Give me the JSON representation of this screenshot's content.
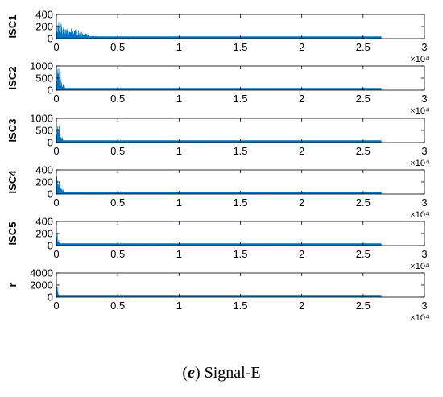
{
  "caption": {
    "letter": "e",
    "text": "Signal-E"
  },
  "chart_data": [
    {
      "type": "area",
      "ylabel": "ISC1",
      "yticks": [
        0,
        200,
        400
      ],
      "ylim": [
        0,
        400
      ],
      "xticks": [
        "0",
        "0.5",
        "1",
        "1.5",
        "2",
        "2.5",
        "3"
      ],
      "xlim": [
        0,
        3
      ],
      "x_scale_label": "×10⁴",
      "color": "#0072BD",
      "envelope": [
        [
          0,
          190
        ],
        [
          0.02,
          310
        ],
        [
          0.04,
          250
        ],
        [
          0.05,
          200
        ],
        [
          0.08,
          210
        ],
        [
          0.1,
          150
        ],
        [
          0.12,
          200
        ],
        [
          0.15,
          175
        ],
        [
          0.2,
          120
        ],
        [
          0.25,
          80
        ],
        [
          0.3,
          50
        ],
        [
          0.35,
          30
        ],
        [
          0.4,
          22
        ],
        [
          0.5,
          15
        ],
        [
          0.7,
          10
        ],
        [
          1.0,
          6
        ],
        [
          1.5,
          4
        ],
        [
          2.0,
          3
        ],
        [
          2.65,
          2
        ]
      ]
    },
    {
      "type": "area",
      "ylabel": "ISC2",
      "yticks": [
        0,
        500,
        1000
      ],
      "ylim": [
        0,
        1000
      ],
      "xticks": [
        "0",
        "0.5",
        "1",
        "1.5",
        "2",
        "2.5",
        "3"
      ],
      "xlim": [
        0,
        3
      ],
      "x_scale_label": "×10⁴",
      "color": "#0072BD",
      "envelope": [
        [
          0,
          500
        ],
        [
          0.01,
          1000
        ],
        [
          0.02,
          950
        ],
        [
          0.025,
          650
        ],
        [
          0.03,
          900
        ],
        [
          0.04,
          420
        ],
        [
          0.05,
          200
        ],
        [
          0.06,
          320
        ],
        [
          0.07,
          90
        ],
        [
          0.1,
          50
        ],
        [
          0.2,
          20
        ],
        [
          0.4,
          12
        ],
        [
          1.0,
          8
        ],
        [
          2.0,
          5
        ],
        [
          2.65,
          4
        ]
      ]
    },
    {
      "type": "area",
      "ylabel": "ISC3",
      "yticks": [
        0,
        500,
        1000
      ],
      "ylim": [
        0,
        1000
      ],
      "xticks": [
        "0",
        "0.5",
        "1",
        "1.5",
        "2",
        "2.5",
        "3"
      ],
      "xlim": [
        0,
        3
      ],
      "x_scale_label": "×10⁴",
      "color": "#0072BD",
      "envelope": [
        [
          0,
          400
        ],
        [
          0.01,
          650
        ],
        [
          0.02,
          780
        ],
        [
          0.03,
          560
        ],
        [
          0.04,
          350
        ],
        [
          0.05,
          210
        ],
        [
          0.06,
          100
        ],
        [
          0.08,
          50
        ],
        [
          0.1,
          25
        ],
        [
          0.2,
          12
        ],
        [
          0.5,
          8
        ],
        [
          1.5,
          5
        ],
        [
          2.65,
          4
        ]
      ]
    },
    {
      "type": "area",
      "ylabel": "ISC4",
      "yticks": [
        0,
        200,
        400
      ],
      "ylim": [
        0,
        400
      ],
      "xticks": [
        "0",
        "0.5",
        "1",
        "1.5",
        "2",
        "2.5",
        "3"
      ],
      "xlim": [
        0,
        3
      ],
      "x_scale_label": "×10⁴",
      "color": "#0072BD",
      "envelope": [
        [
          0,
          330
        ],
        [
          0.01,
          310
        ],
        [
          0.02,
          260
        ],
        [
          0.03,
          200
        ],
        [
          0.04,
          150
        ],
        [
          0.05,
          100
        ],
        [
          0.06,
          60
        ],
        [
          0.08,
          30
        ],
        [
          0.1,
          15
        ],
        [
          0.2,
          8
        ],
        [
          1.0,
          5
        ],
        [
          2.65,
          4
        ]
      ]
    },
    {
      "type": "area",
      "ylabel": "ISC5",
      "yticks": [
        0,
        200,
        400
      ],
      "ylim": [
        0,
        400
      ],
      "xticks": [
        "0",
        "0.5",
        "1",
        "1.5",
        "2",
        "2.5",
        "3"
      ],
      "xlim": [
        0,
        3
      ],
      "x_scale_label": "×10⁴",
      "color": "#0072BD",
      "envelope": [
        [
          0,
          300
        ],
        [
          0.01,
          220
        ],
        [
          0.02,
          120
        ],
        [
          0.03,
          50
        ],
        [
          0.05,
          15
        ],
        [
          0.1,
          8
        ],
        [
          1.0,
          5
        ],
        [
          2.65,
          4
        ]
      ]
    },
    {
      "type": "area",
      "ylabel": "r",
      "yticks": [
        0,
        2000,
        4000
      ],
      "ylim": [
        0,
        4000
      ],
      "xticks": [
        "0",
        "0.5",
        "1",
        "1.5",
        "2",
        "2.5",
        "3"
      ],
      "xlim": [
        0,
        3
      ],
      "x_scale_label": "×10⁴",
      "color": "#0072BD",
      "envelope": [
        [
          0,
          3400
        ],
        [
          0.01,
          2000
        ],
        [
          0.02,
          400
        ],
        [
          0.03,
          100
        ],
        [
          0.05,
          40
        ],
        [
          0.1,
          20
        ],
        [
          1.0,
          15
        ],
        [
          2.65,
          12
        ]
      ]
    }
  ]
}
